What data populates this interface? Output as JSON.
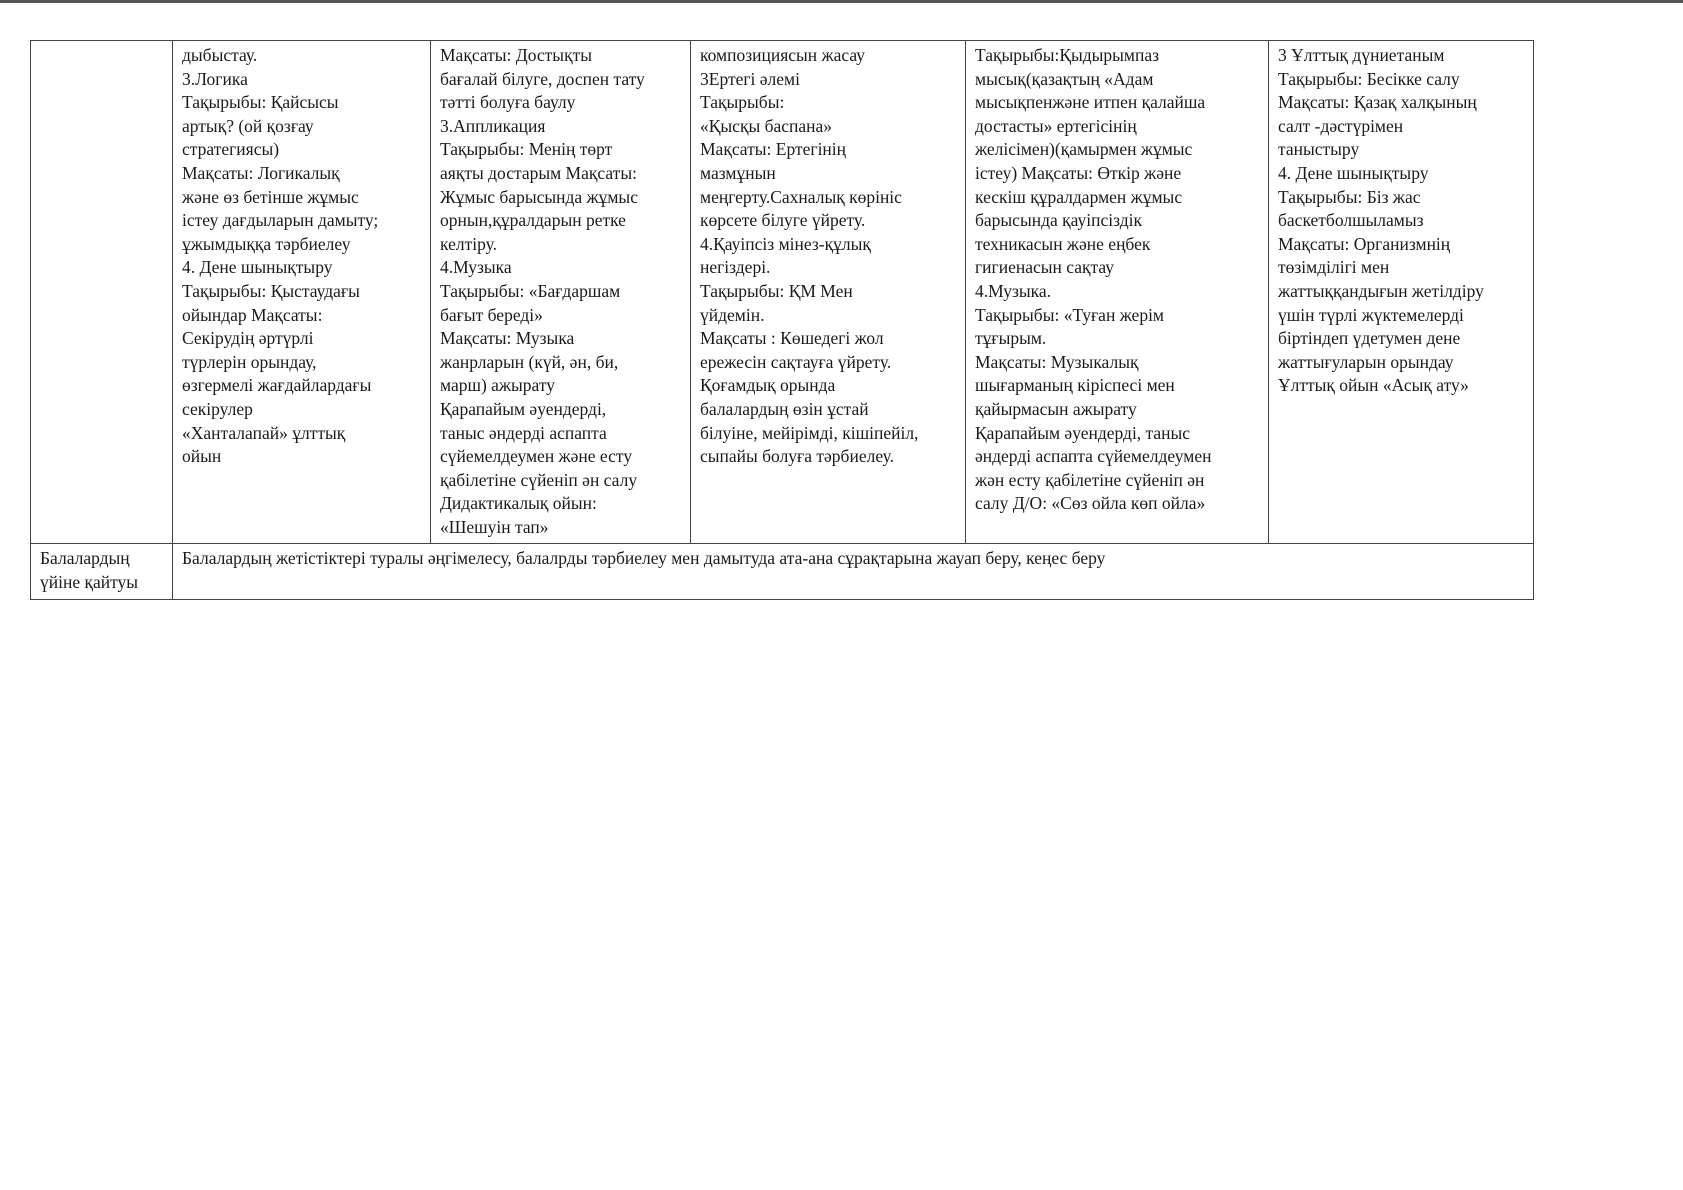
{
  "table": {
    "row1": {
      "label": "",
      "cells": [
        "дыбыстау.\n3.Логика\nТақырыбы: Қайсысы\nартық? (ой қозғау\nстратегиясы)\nМақсаты: Логикалық\nжәне  өз бетінше жұмыс\nістеу дағдыларын дамыту;\nұжымдыққа тәрбиелеу\n4. Дене шынықтыру\nТақырыбы: Қыстаудағы\nойындар Мақсаты:\nСекірудің әртүрлі\nтүрлерін орындау,\nөзгермелі жағдайлардағы\nсекірулер\n«Ханталапай» ұлттық\nойын",
        "Мақсаты: Достықты\nбағалай білуге, доспен тату\nтәтті болуға баулу\n3.Аппликация\nТақырыбы: Менің төрт\nаяқты достарым Мақсаты:\nЖұмыс барысында жұмыс\nорнын,құралдарын ретке\nкелтіру.\n4.Музыка\nТақырыбы: «Бағдаршам\nбағыт береді»\nМақсаты: Музыка\nжанрларын (күй, ән, би,\nмарш) ажырату\nҚарапайым әуендерді,\nтаныс әндерді аспапта\nсүйемелдеумен және есту\nқабілетіне сүйеніп ән салу\nДидактикалық ойын:\n«Шешуін тап»",
        "композициясын жасау\n3Ертегі әлемі\nТақырыбы:\n«Қысқы баспана»\nМақсаты: Ертегінің\nмазмұнын\nмеңгерту.Сахналық көрініс\nкөрсете білуге үйрету.\n4.Қауіпсіз мінез-құлық\nнегіздері.\nТақырыбы: ҚМ Мен\nүйдемін.\nМақсаты : Көшедегі жол\nережесін сақтауға үйрету.\nҚоғамдық орында\nбалалардың өзін ұстай\nбілуіне, мейірімді, кішіпейіл,\nсыпайы болуға тәрбиелеу.",
        "Тақырыбы:Қыдырымпаз\nмысық(қазақтың «Адам\nмысықпенжәне итпен қалайша\nдостасты» ертегісінің\nжелісімен)(қамырмен жұмыс\nістеу) Мақсаты: Өткір және\nкескіш құралдармен жұмыс\nбарысында қауіпсіздік\nтехникасын және еңбек\nгигиенасын сақтау\n4.Музыка.\nТақырыбы: «Туған жерім\nтұғырым.\nМақсаты: Музыкалық\nшығарманың кіріспесі мен\nқайырмасын ажырату\nҚарапайым әуендерді, таныс\nәндерді аспапта сүйемелдеумен\nжән есту қабілетіне сүйеніп ән\nсалу Д/О: «Сөз ойла көп ойла»",
        "3 Ұлттық дүниетаным\nТақырыбы: Бесікке салу\nМақсаты: Қазақ халқының\nсалт -дәстүрімен\nтаныстыру\n4. Дене шынықтыру\nТақырыбы: Біз жас\nбаскетболшыламыз\nМақсаты: Организмнің\nтөзімділігі мен\nжаттыққандығын жетілдіру\nүшін түрлі жүктемелерді\nбіртіндеп үдетумен дене\nжаттығуларын орындау\nҰлттық ойын «Асық ату»"
      ]
    },
    "row2": {
      "label": "Балалардың\nүйіне  қайтуы",
      "text": "Балалардың жетістіктері туралы әңгімелесу, балалрды тәрбиелеу мен дамытуда ата-ана сұрақтарына жауап беру, кеңес беру"
    }
  }
}
